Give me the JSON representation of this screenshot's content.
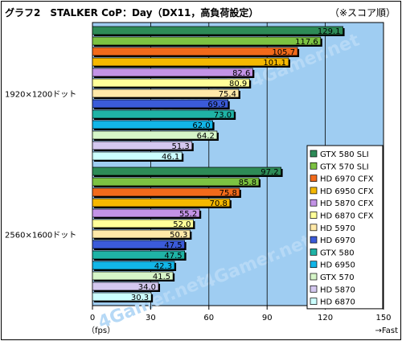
{
  "chart_data": {
    "type": "bar",
    "orientation": "horizontal",
    "title": "グラフ2　STALKER CoP：Day（DX11，高負荷設定）",
    "subtitle": "（※スコア順）",
    "xlabel": "（fps）",
    "x_arrow_label": "→Fast",
    "xlim": [
      0,
      150
    ],
    "xticks": [
      0,
      30,
      60,
      90,
      120,
      150
    ],
    "grid": true,
    "legend_position": "inside-right",
    "watermark": "4Gamer.net",
    "series": [
      {
        "name": "GTX 580 SLI",
        "color": "#2e8b57"
      },
      {
        "name": "GTX 570 SLI",
        "color": "#7cc242"
      },
      {
        "name": "HD 6970 CFX",
        "color": "#f26a1b"
      },
      {
        "name": "HD 6950 CFX",
        "color": "#f5b800"
      },
      {
        "name": "HD 5870 CFX",
        "color": "#c393e6"
      },
      {
        "name": "HD 6870 CFX",
        "color": "#ffff99"
      },
      {
        "name": "HD 5970",
        "color": "#ffe9a8"
      },
      {
        "name": "HD 6970",
        "color": "#3b5bd9"
      },
      {
        "name": "GTX 580",
        "color": "#1fb3a6"
      },
      {
        "name": "HD 6950",
        "color": "#12b6e8"
      },
      {
        "name": "GTX 570",
        "color": "#d6f5c8"
      },
      {
        "name": "HD 5870",
        "color": "#d4c8f0"
      },
      {
        "name": "HD 6870",
        "color": "#ccffff"
      }
    ],
    "groups": [
      {
        "label": "1920×1200ドット",
        "bars": [
          {
            "series": "GTX 580 SLI",
            "value": 129.1
          },
          {
            "series": "GTX 570 SLI",
            "value": 117.6
          },
          {
            "series": "HD 6970 CFX",
            "value": 105.7
          },
          {
            "series": "HD 6950 CFX",
            "value": 101.1
          },
          {
            "series": "HD 5870 CFX",
            "value": 82.6
          },
          {
            "series": "HD 6870 CFX",
            "value": 80.9
          },
          {
            "series": "HD 5970",
            "value": 75.4
          },
          {
            "series": "HD 6970",
            "value": 69.9
          },
          {
            "series": "GTX 580",
            "value": 73.0
          },
          {
            "series": "HD 6950",
            "value": 62.0
          },
          {
            "series": "GTX 570",
            "value": 64.2
          },
          {
            "series": "HD 5870",
            "value": 51.3
          },
          {
            "series": "HD 6870",
            "value": 46.1
          }
        ]
      },
      {
        "label": "2560×1600ドット",
        "bars": [
          {
            "series": "GTX 580 SLI",
            "value": 97.2
          },
          {
            "series": "GTX 570 SLI",
            "value": 85.8
          },
          {
            "series": "HD 6970 CFX",
            "value": 75.8
          },
          {
            "series": "HD 6950 CFX",
            "value": 70.8
          },
          {
            "series": "HD 5870 CFX",
            "value": 55.2
          },
          {
            "series": "HD 6870 CFX",
            "value": 52.0
          },
          {
            "series": "HD 5970",
            "value": 50.3
          },
          {
            "series": "HD 6970",
            "value": 47.5
          },
          {
            "series": "GTX 580",
            "value": 47.5
          },
          {
            "series": "HD 6950",
            "value": 42.3
          },
          {
            "series": "GTX 570",
            "value": 41.5
          },
          {
            "series": "HD 5870",
            "value": 34.0
          },
          {
            "series": "HD 6870",
            "value": 30.3
          }
        ]
      }
    ]
  }
}
